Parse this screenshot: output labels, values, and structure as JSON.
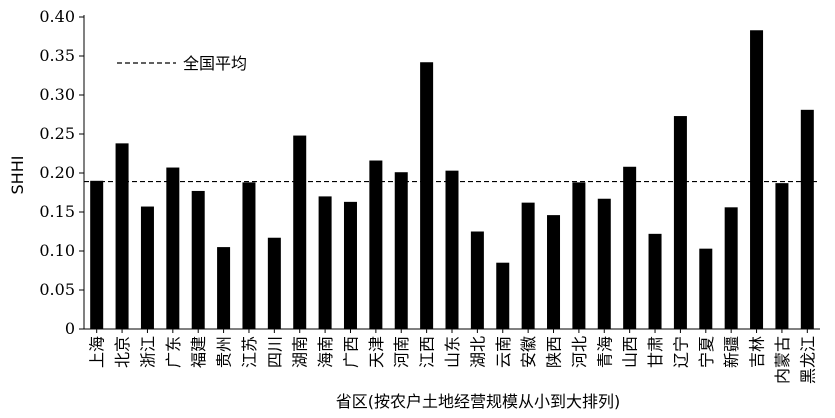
{
  "chart_data": {
    "type": "bar",
    "ylabel": "SHHI",
    "xlabel": "省区(按农户土地经营规模从小到大排列)",
    "ylim": [
      0,
      0.4
    ],
    "yticks": [
      "0",
      "0.05",
      "0.10",
      "0.15",
      "0.20",
      "0.25",
      "0.30",
      "0.35",
      "0.40"
    ],
    "categories": [
      "上海",
      "北京",
      "浙江",
      "广东",
      "福建",
      "贵州",
      "江苏",
      "四川",
      "湖南",
      "海南",
      "广西",
      "天津",
      "河南",
      "江西",
      "山东",
      "湖北",
      "云南",
      "安徽",
      "陕西",
      "河北",
      "青海",
      "山西",
      "甘肃",
      "辽宁",
      "宁夏",
      "新疆",
      "吉林",
      "内蒙古",
      "黑龙江"
    ],
    "values": [
      0.19,
      0.238,
      0.157,
      0.207,
      0.177,
      0.105,
      0.188,
      0.117,
      0.248,
      0.17,
      0.163,
      0.216,
      0.201,
      0.342,
      0.203,
      0.125,
      0.085,
      0.162,
      0.146,
      0.188,
      0.167,
      0.208,
      0.122,
      0.273,
      0.103,
      0.156,
      0.383,
      0.187,
      0.281
    ],
    "reference_line": {
      "name": "全国平均",
      "value": 0.189
    },
    "bar_color": "#000000",
    "grid": false,
    "legend_position": "top-left"
  }
}
